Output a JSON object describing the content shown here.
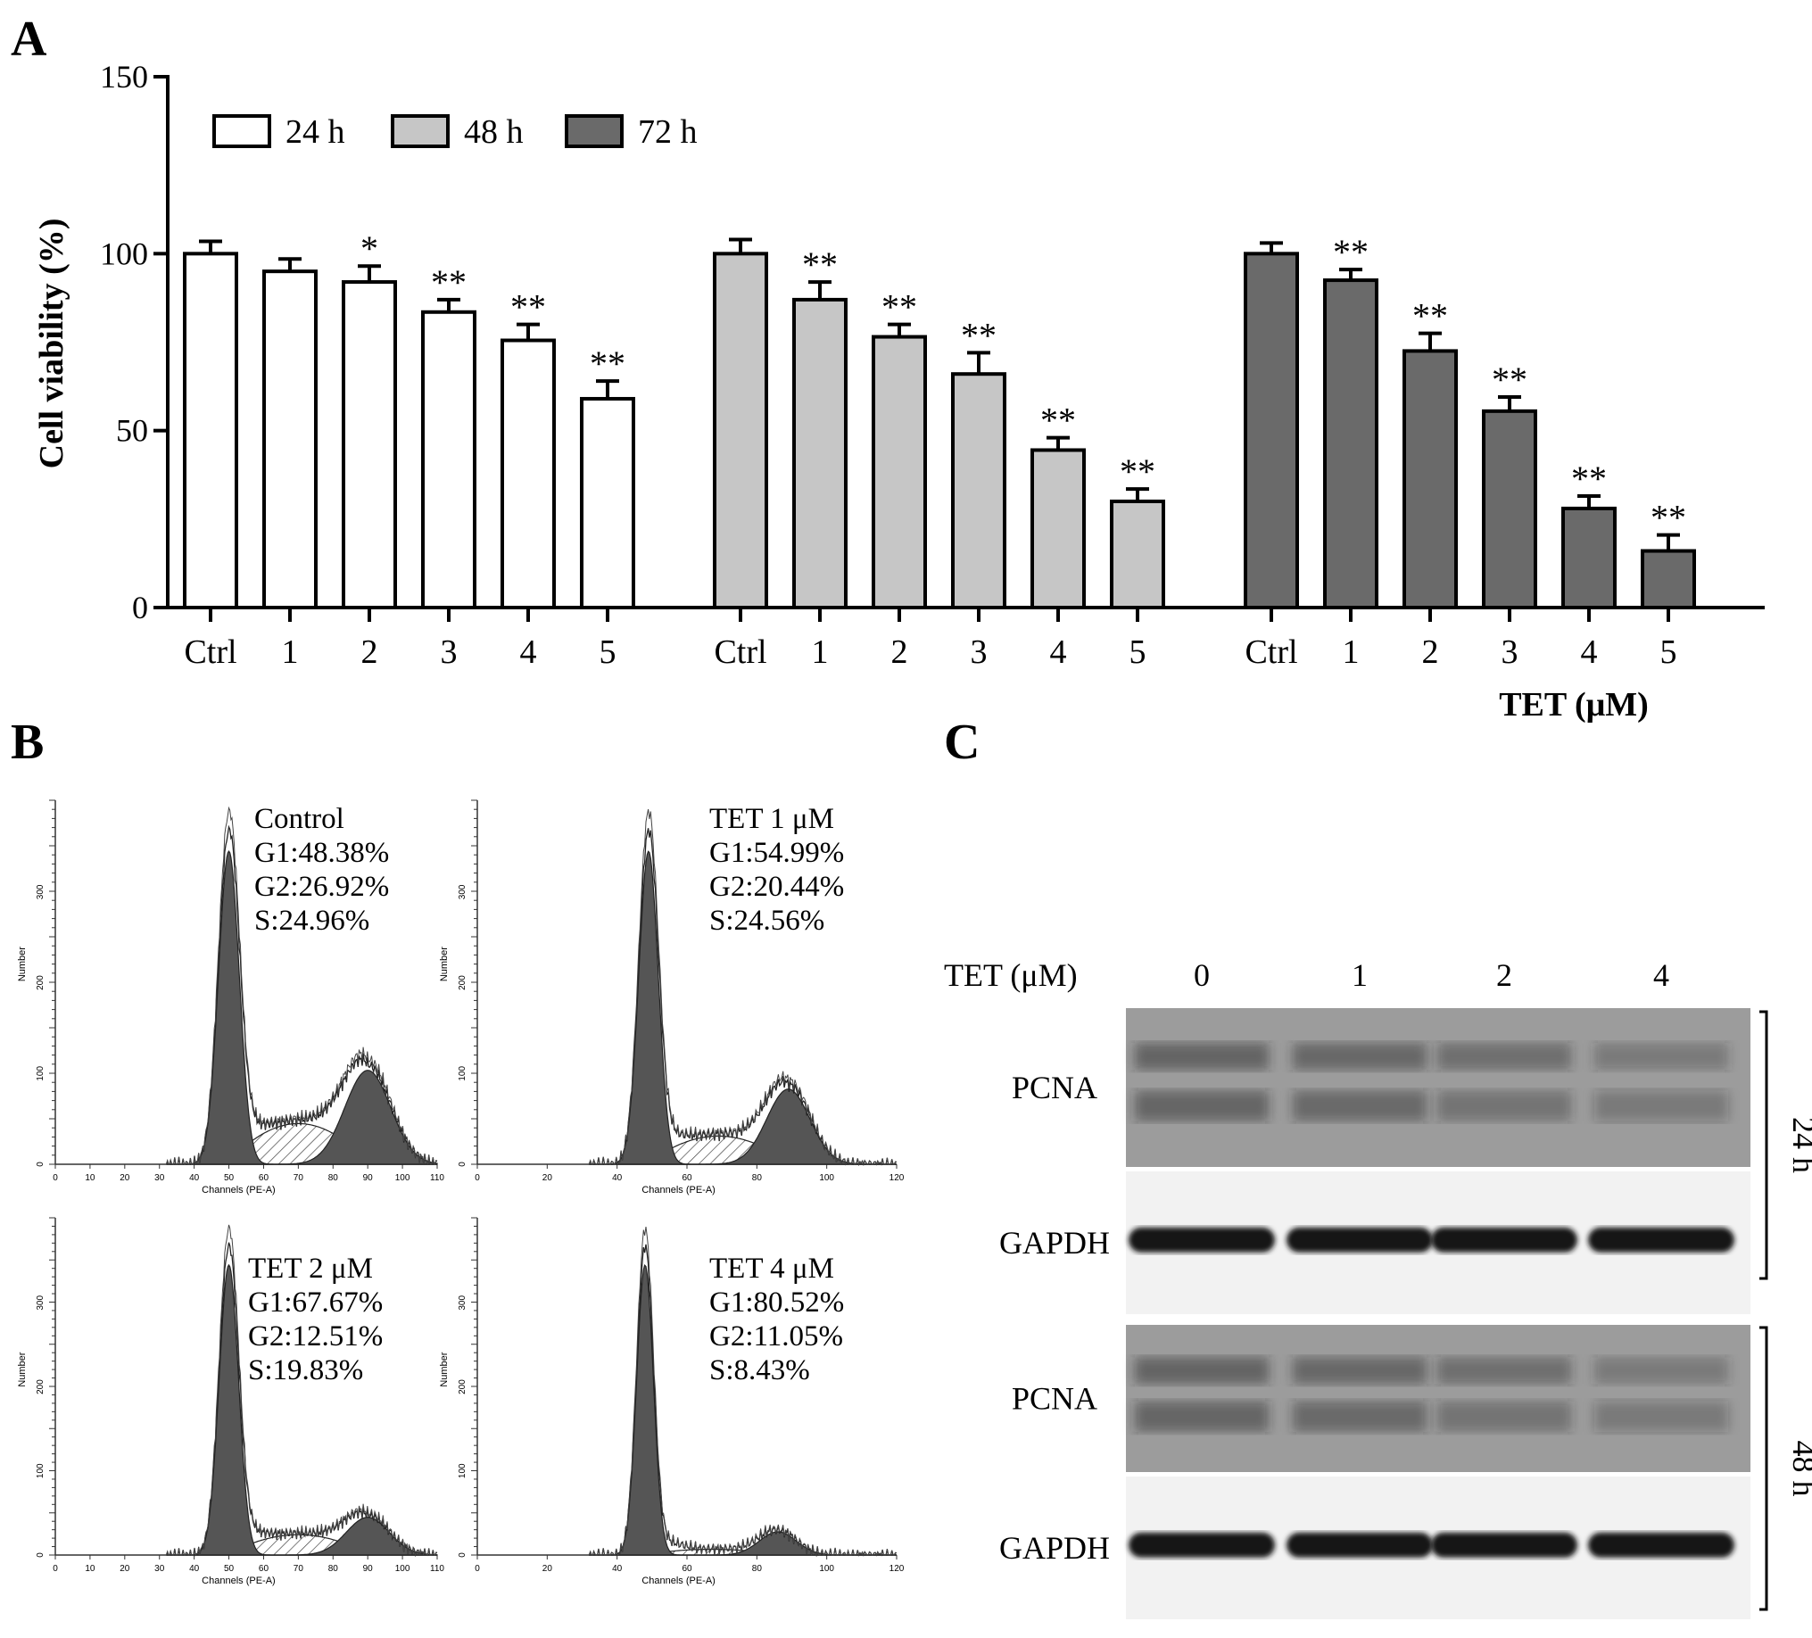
{
  "panel_a": {
    "letter": "A",
    "chart_data": {
      "type": "bar",
      "ylabel": "Cell viability (%)",
      "xlabel": "TET (μM)",
      "ylim": [
        0,
        150
      ],
      "yticks": [
        0,
        50,
        100,
        150
      ],
      "legend_position": "top-left",
      "categories": [
        "Ctrl",
        "1",
        "2",
        "3",
        "4",
        "5"
      ],
      "series": [
        {
          "name": "24 h",
          "color": "#ffffff",
          "values": [
            100,
            95,
            92,
            83.5,
            75.5,
            59
          ],
          "errors": [
            3.5,
            3.5,
            4.5,
            3.5,
            4.5,
            5
          ],
          "significance": [
            "",
            "",
            "*",
            "**",
            "**",
            "**"
          ]
        },
        {
          "name": "48 h",
          "color": "#c6c6c6",
          "values": [
            100,
            87,
            76.5,
            66,
            44.5,
            30
          ],
          "errors": [
            4,
            5,
            3.5,
            6,
            3.5,
            3.5
          ],
          "significance": [
            "",
            "**",
            "**",
            "**",
            "**",
            "**"
          ]
        },
        {
          "name": "72 h",
          "color": "#6a6a6a",
          "values": [
            100,
            92.5,
            72.5,
            55.5,
            28,
            16
          ],
          "errors": [
            3,
            3,
            5,
            4,
            3.5,
            4.5
          ],
          "significance": [
            "",
            "**",
            "**",
            "**",
            "**",
            "**"
          ]
        }
      ]
    }
  },
  "panel_b": {
    "letter": "B",
    "histograms": [
      {
        "title": "Control",
        "g1": "G1:48.38%",
        "g2": "G2:26.92%",
        "s": "S:24.96%",
        "xmax": 110,
        "xticks": [
          0,
          10,
          20,
          30,
          40,
          50,
          60,
          70,
          80,
          90,
          100,
          110
        ],
        "g1_peak": 50,
        "g2_peak": 90,
        "g2_height": 0.3,
        "s_level": 0.13,
        "g1_height": 1.0,
        "g1_width": 3.0
      },
      {
        "title": "TET 1 μM",
        "g1": "G1:54.99%",
        "g2": "G2:20.44%",
        "s": "S:24.56%",
        "xmax": 120,
        "xticks": [
          0,
          20,
          40,
          60,
          80,
          100,
          120
        ],
        "g1_peak": 49,
        "g2_peak": 89,
        "g2_height": 0.24,
        "s_level": 0.09,
        "g1_height": 1.0,
        "g1_width": 2.8
      },
      {
        "title": "TET 2 μM",
        "g1": "G1:67.67%",
        "g2": "G2:12.51%",
        "s": "S:19.83%",
        "xmax": 110,
        "xticks": [
          0,
          10,
          20,
          30,
          40,
          50,
          60,
          70,
          80,
          90,
          100,
          110
        ],
        "g1_peak": 50,
        "g2_peak": 90,
        "g2_height": 0.13,
        "s_level": 0.07,
        "g1_height": 1.0,
        "g1_width": 2.8
      },
      {
        "title": "TET 4 μM",
        "g1": "G1:80.52%",
        "g2": "G2:11.05%",
        "s": "S:8.43%",
        "xmax": 120,
        "xticks": [
          0,
          20,
          40,
          60,
          80,
          100,
          120
        ],
        "g1_peak": 48,
        "g2_peak": 86,
        "g2_height": 0.08,
        "s_level": 0.02,
        "g1_height": 1.0,
        "g1_width": 2.4
      }
    ],
    "ylabel": "Number",
    "xlabel": "Channels (PE-A)",
    "yticks": [
      0,
      100,
      200,
      300
    ]
  },
  "panel_c": {
    "letter": "C",
    "dose_label": "TET (μM)",
    "doses": [
      "0",
      "1",
      "2",
      "4"
    ],
    "blots": [
      {
        "label": "PCNA",
        "group": "24 h",
        "type": "pcna"
      },
      {
        "label": "GAPDH",
        "group": "24 h",
        "type": "gapdh"
      },
      {
        "label": "PCNA",
        "group": "48 h",
        "type": "pcna"
      },
      {
        "label": "GAPDH",
        "group": "48 h",
        "type": "gapdh"
      }
    ],
    "groups": [
      "24 h",
      "48 h"
    ]
  }
}
